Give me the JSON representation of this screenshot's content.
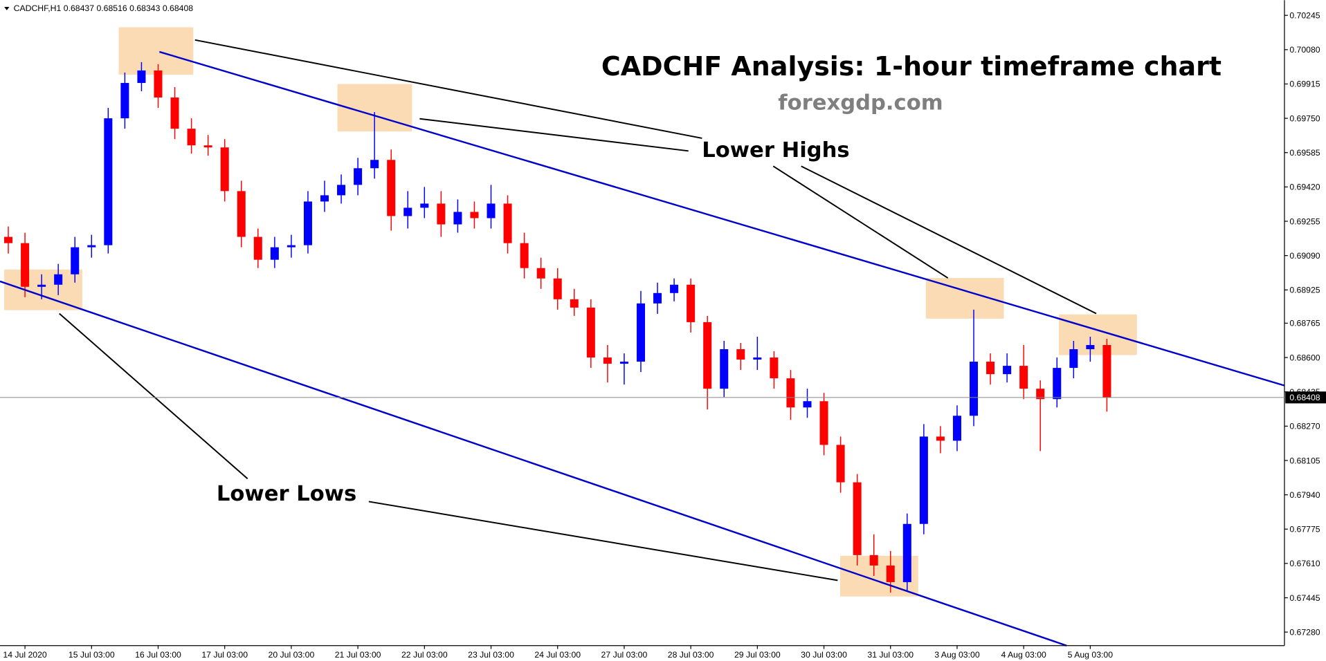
{
  "header": {
    "symbol": "CADCHF,H1",
    "ohlc": [
      0.68437,
      0.68516,
      0.68343,
      0.68408
    ]
  },
  "chart_data": {
    "type": "candlestick",
    "title": "CADCHF Analysis: 1-hour timeframe chart",
    "subtitle": "forexgdp.com",
    "annotations": [
      "Lower Highs",
      "Lower Lows"
    ],
    "up_color": "#0000ff",
    "down_color": "#ff0000",
    "current_price": 0.68408,
    "x": [
      -3,
      3,
      9,
      15,
      21,
      27,
      33,
      39,
      45,
      51,
      57,
      63,
      69,
      75,
      81,
      87,
      93,
      99,
      105,
      111,
      117,
      123,
      129,
      135,
      141,
      147,
      153,
      159,
      165,
      171,
      177,
      183,
      189,
      195,
      201,
      207,
      213,
      219,
      225,
      231,
      237,
      243,
      249,
      255,
      261,
      267,
      273,
      279,
      285,
      291,
      297,
      303,
      309,
      315,
      321,
      327,
      333,
      339,
      345,
      351,
      357,
      363,
      369,
      375,
      381,
      387,
      393
    ],
    "open": [
      0.6918,
      0.6915,
      0.6894,
      0.6895,
      0.69,
      0.6913,
      0.6914,
      0.6975,
      0.6992,
      0.6998,
      0.6985,
      0.697,
      0.6962,
      0.6961,
      0.694,
      0.6918,
      0.6907,
      0.6913,
      0.6914,
      0.6935,
      0.6938,
      0.6943,
      0.6951,
      0.6955,
      0.6928,
      0.6932,
      0.6934,
      0.6924,
      0.693,
      0.6927,
      0.6934,
      0.6915,
      0.6903,
      0.6898,
      0.6888,
      0.6884,
      0.686,
      0.6857,
      0.6858,
      0.6886,
      0.6891,
      0.6895,
      0.6877,
      0.6845,
      0.6864,
      0.6859,
      0.686,
      0.685,
      0.6836,
      0.6839,
      0.6818,
      0.68,
      0.6765,
      0.676,
      0.6752,
      0.678,
      0.6822,
      0.682,
      0.6832,
      0.6858,
      0.6852,
      0.6856,
      0.6845,
      0.684,
      0.6855,
      0.6864,
      0.6866
    ],
    "high": [
      0.6923,
      0.692,
      0.69,
      0.6905,
      0.6918,
      0.6919,
      0.698,
      0.6997,
      0.7002,
      0.7001,
      0.699,
      0.6975,
      0.6967,
      0.6965,
      0.6945,
      0.6922,
      0.6918,
      0.6919,
      0.694,
      0.6945,
      0.6948,
      0.6956,
      0.6978,
      0.696,
      0.694,
      0.6942,
      0.694,
      0.6936,
      0.6935,
      0.6943,
      0.6938,
      0.692,
      0.6908,
      0.6903,
      0.6893,
      0.6888,
      0.6866,
      0.6862,
      0.6892,
      0.6896,
      0.6898,
      0.6898,
      0.688,
      0.6868,
      0.6867,
      0.687,
      0.6863,
      0.6854,
      0.6845,
      0.6843,
      0.6822,
      0.6804,
      0.6775,
      0.6767,
      0.6785,
      0.6828,
      0.6827,
      0.6837,
      0.6883,
      0.6862,
      0.6862,
      0.6866,
      0.6849,
      0.686,
      0.6868,
      0.687,
      0.6869
    ],
    "low": [
      0.691,
      0.6889,
      0.6888,
      0.689,
      0.6896,
      0.6908,
      0.691,
      0.697,
      0.6988,
      0.698,
      0.6965,
      0.6958,
      0.6957,
      0.6935,
      0.6913,
      0.6903,
      0.6903,
      0.6908,
      0.691,
      0.693,
      0.6934,
      0.6938,
      0.6946,
      0.6921,
      0.6922,
      0.6927,
      0.6918,
      0.692,
      0.6922,
      0.6922,
      0.691,
      0.6898,
      0.6893,
      0.6883,
      0.688,
      0.6855,
      0.6848,
      0.6847,
      0.6853,
      0.6881,
      0.6887,
      0.6872,
      0.6835,
      0.6841,
      0.6854,
      0.6854,
      0.6845,
      0.683,
      0.6831,
      0.6813,
      0.6795,
      0.676,
      0.6755,
      0.6747,
      0.6748,
      0.6775,
      0.6814,
      0.6815,
      0.6827,
      0.6847,
      0.6848,
      0.684,
      0.6815,
      0.6836,
      0.685,
      0.6858,
      0.6834
    ],
    "close": [
      0.6915,
      0.6894,
      0.6895,
      0.69,
      0.6913,
      0.6914,
      0.6975,
      0.6992,
      0.6998,
      0.6985,
      0.697,
      0.6962,
      0.6961,
      0.694,
      0.6918,
      0.6907,
      0.6913,
      0.6914,
      0.6935,
      0.6938,
      0.6943,
      0.6951,
      0.6955,
      0.6928,
      0.6932,
      0.6934,
      0.6924,
      0.693,
      0.6927,
      0.6934,
      0.6915,
      0.6903,
      0.6898,
      0.6888,
      0.6884,
      0.686,
      0.6857,
      0.6858,
      0.6886,
      0.6891,
      0.6895,
      0.6877,
      0.6845,
      0.6864,
      0.6859,
      0.686,
      0.685,
      0.6836,
      0.6839,
      0.6818,
      0.68,
      0.6765,
      0.676,
      0.6752,
      0.678,
      0.6822,
      0.682,
      0.6832,
      0.6858,
      0.6852,
      0.6856,
      0.6845,
      0.684,
      0.6855,
      0.6864,
      0.6866,
      0.68408
    ],
    "xlim": [
      -6,
      457
    ],
    "xticks": [
      {
        "value": 3,
        "label": "14 Jul 2020"
      },
      {
        "value": 27,
        "label": "15 Jul 03:00"
      },
      {
        "value": 51,
        "label": "16 Jul 03:00"
      },
      {
        "value": 75,
        "label": "17 Jul 03:00"
      },
      {
        "value": 99,
        "label": "20 Jul 03:00"
      },
      {
        "value": 123,
        "label": "21 Jul 03:00"
      },
      {
        "value": 147,
        "label": "22 Jul 03:00"
      },
      {
        "value": 171,
        "label": "23 Jul 03:00"
      },
      {
        "value": 195,
        "label": "24 Jul 03:00"
      },
      {
        "value": 219,
        "label": "27 Jul 03:00"
      },
      {
        "value": 243,
        "label": "28 Jul 03:00"
      },
      {
        "value": 267,
        "label": "29 Jul 03:00"
      },
      {
        "value": 291,
        "label": "30 Jul 03:00"
      },
      {
        "value": 315,
        "label": "31 Jul 03:00"
      },
      {
        "value": 339,
        "label": "3 Aug 03:00"
      },
      {
        "value": 363,
        "label": "4 Aug 03:00"
      },
      {
        "value": 387,
        "label": "5 Aug 03:00"
      }
    ],
    "ylim": [
      0.67215,
      0.70318
    ],
    "yticks": [
      {
        "value": 0.70245,
        "label": "0.70245"
      },
      {
        "value": 0.7008,
        "label": "0.70080"
      },
      {
        "value": 0.69915,
        "label": "0.69915"
      },
      {
        "value": 0.6975,
        "label": "0.69750"
      },
      {
        "value": 0.69585,
        "label": "0.69585"
      },
      {
        "value": 0.6942,
        "label": "0.69420"
      },
      {
        "value": 0.69255,
        "label": "0.69255"
      },
      {
        "value": 0.6909,
        "label": "0.69090"
      },
      {
        "value": 0.68925,
        "label": "0.68925"
      },
      {
        "value": 0.68765,
        "label": "0.68765"
      },
      {
        "value": 0.686,
        "label": "0.68600"
      },
      {
        "value": 0.68435,
        "label": "0.68435"
      },
      {
        "value": 0.6827,
        "label": "0.68270"
      },
      {
        "value": 0.68105,
        "label": "0.68105"
      },
      {
        "value": 0.6794,
        "label": "0.67940"
      },
      {
        "value": 0.67775,
        "label": "0.67775"
      },
      {
        "value": 0.6761,
        "label": "0.67610"
      },
      {
        "value": 0.67445,
        "label": "0.67445"
      },
      {
        "value": 0.6728,
        "label": "0.67280"
      }
    ]
  }
}
